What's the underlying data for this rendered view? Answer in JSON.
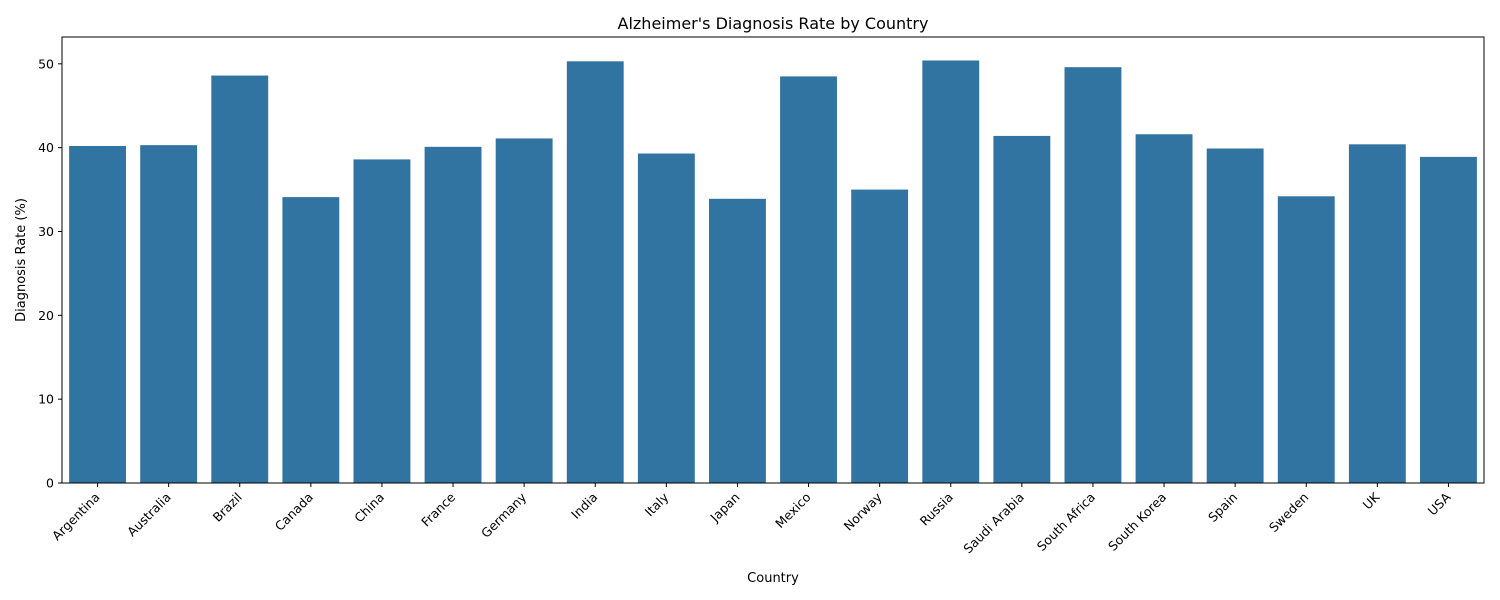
{
  "chart_data": {
    "type": "bar",
    "title": "Alzheimer's Diagnosis Rate by Country",
    "xlabel": "Country",
    "ylabel": "Diagnosis Rate (%)",
    "categories": [
      "Argentina",
      "Australia",
      "Brazil",
      "Canada",
      "China",
      "France",
      "Germany",
      "India",
      "Italy",
      "Japan",
      "Mexico",
      "Norway",
      "Russia",
      "Saudi Arabia",
      "South Africa",
      "South Korea",
      "Spain",
      "Sweden",
      "UK",
      "USA"
    ],
    "values": [
      40.2,
      40.3,
      48.6,
      34.1,
      38.6,
      40.1,
      41.1,
      50.3,
      39.3,
      33.9,
      48.5,
      35.0,
      50.4,
      41.4,
      49.6,
      41.6,
      39.9,
      34.2,
      40.4,
      38.9
    ],
    "ylim": [
      0,
      53.2
    ],
    "yticks": [
      0,
      10,
      20,
      30,
      40,
      50
    ],
    "grid": false,
    "bar_color": "#3274a1"
  }
}
